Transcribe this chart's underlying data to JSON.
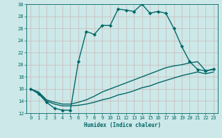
{
  "title": "",
  "xlabel": "Humidex (Indice chaleur)",
  "bg_color": "#cce8e8",
  "line_color": "#006666",
  "xlim": [
    -0.5,
    23.5
  ],
  "ylim": [
    12,
    30
  ],
  "yticks": [
    12,
    14,
    16,
    18,
    20,
    22,
    24,
    26,
    28,
    30
  ],
  "xticks": [
    0,
    1,
    2,
    3,
    4,
    5,
    6,
    7,
    8,
    9,
    10,
    11,
    12,
    13,
    14,
    15,
    16,
    17,
    18,
    19,
    20,
    21,
    22,
    23
  ],
  "series": [
    {
      "x": [
        0,
        1,
        2,
        3,
        4,
        5,
        6,
        7,
        8,
        9,
        10,
        11,
        12,
        13,
        14,
        15,
        16,
        17,
        18,
        19,
        20,
        21,
        22,
        23
      ],
      "y": [
        16,
        15.2,
        13.8,
        12.8,
        12.5,
        12.5,
        20.5,
        25.5,
        25,
        26.5,
        26.5,
        29.2,
        29,
        28.8,
        30,
        28.5,
        28.8,
        28.5,
        26,
        23,
        20.5,
        19.2,
        19,
        19.3
      ],
      "marker": "D",
      "markersize": 2.2,
      "linewidth": 1.0
    },
    {
      "x": [
        0,
        1,
        2,
        3,
        4,
        5,
        6,
        7,
        8,
        9,
        10,
        11,
        12,
        13,
        14,
        15,
        16,
        17,
        18,
        19,
        20,
        21,
        22,
        23
      ],
      "y": [
        16.0,
        15.3,
        14.0,
        13.5,
        13.2,
        13.2,
        13.3,
        13.5,
        13.8,
        14.2,
        14.5,
        15.0,
        15.3,
        15.7,
        16.2,
        16.5,
        17.0,
        17.4,
        17.8,
        18.2,
        18.5,
        18.8,
        18.5,
        18.8
      ],
      "marker": null,
      "markersize": 0,
      "linewidth": 1.0
    },
    {
      "x": [
        0,
        1,
        2,
        3,
        4,
        5,
        6,
        7,
        8,
        9,
        10,
        11,
        12,
        13,
        14,
        15,
        16,
        17,
        18,
        19,
        20,
        21,
        22,
        23
      ],
      "y": [
        16.0,
        15.5,
        14.2,
        13.8,
        13.5,
        13.5,
        13.8,
        14.2,
        14.8,
        15.5,
        16.0,
        16.5,
        17.0,
        17.5,
        18.0,
        18.5,
        19.0,
        19.5,
        19.8,
        20.0,
        20.3,
        20.5,
        19.0,
        19.2
      ],
      "marker": null,
      "markersize": 0,
      "linewidth": 1.0
    }
  ]
}
